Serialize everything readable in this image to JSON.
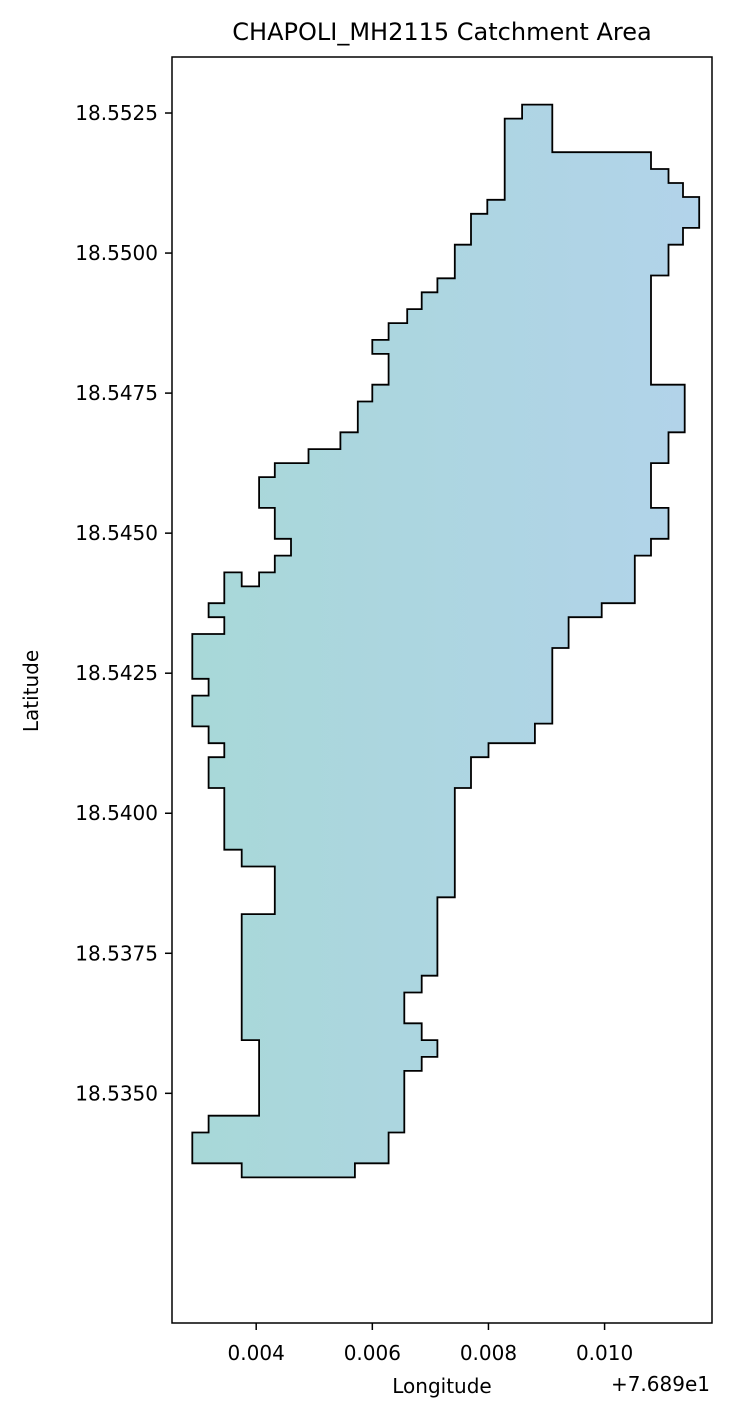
{
  "chart_data": {
    "type": "map",
    "title": "CHAPOLI_MH2115 Catchment Area",
    "xlabel": "Longitude",
    "ylabel": "Latitude",
    "x_offset_label": "+7.689e1",
    "xlim": [
      0.00255,
      0.01185
    ],
    "ylim": [
      18.5309,
      18.5535
    ],
    "xticks": [
      {
        "value": 0.004,
        "label": "0.004"
      },
      {
        "value": 0.006,
        "label": "0.006"
      },
      {
        "value": 0.008,
        "label": "0.008"
      },
      {
        "value": 0.01,
        "label": "0.010"
      }
    ],
    "yticks": [
      {
        "value": 18.535,
        "label": "18.5350"
      },
      {
        "value": 18.5375,
        "label": "18.5375"
      },
      {
        "value": 18.54,
        "label": "18.5400"
      },
      {
        "value": 18.5425,
        "label": "18.5425"
      },
      {
        "value": 18.545,
        "label": "18.5450"
      },
      {
        "value": 18.5475,
        "label": "18.5475"
      },
      {
        "value": 18.55,
        "label": "18.5500"
      },
      {
        "value": 18.5525,
        "label": "18.5525"
      }
    ],
    "grid": false,
    "fill_color_start": "#a8d8d8",
    "fill_color_end": "#b2d3ea",
    "edge_color": "#000000",
    "polygon": [
      [
        0.00858,
        18.55265
      ],
      [
        0.0091,
        18.55265
      ],
      [
        0.0091,
        18.5518
      ],
      [
        0.0108,
        18.5518
      ],
      [
        0.0108,
        18.5515
      ],
      [
        0.0111,
        18.5515
      ],
      [
        0.0111,
        18.55125
      ],
      [
        0.01135,
        18.55125
      ],
      [
        0.01135,
        18.551
      ],
      [
        0.01163,
        18.551
      ],
      [
        0.01163,
        18.55045
      ],
      [
        0.01135,
        18.55045
      ],
      [
        0.01135,
        18.55015
      ],
      [
        0.0111,
        18.55015
      ],
      [
        0.0111,
        18.5496
      ],
      [
        0.0108,
        18.5496
      ],
      [
        0.0108,
        18.54765
      ],
      [
        0.01138,
        18.54765
      ],
      [
        0.01138,
        18.5468
      ],
      [
        0.0111,
        18.5468
      ],
      [
        0.0111,
        18.54625
      ],
      [
        0.0108,
        18.54625
      ],
      [
        0.0108,
        18.54545
      ],
      [
        0.0111,
        18.54545
      ],
      [
        0.0111,
        18.5449
      ],
      [
        0.0108,
        18.5449
      ],
      [
        0.0108,
        18.5446
      ],
      [
        0.01052,
        18.5446
      ],
      [
        0.01052,
        18.54375
      ],
      [
        0.00995,
        18.54375
      ],
      [
        0.00995,
        18.5435
      ],
      [
        0.00938,
        18.5435
      ],
      [
        0.00938,
        18.54295
      ],
      [
        0.0091,
        18.54295
      ],
      [
        0.0091,
        18.5416
      ],
      [
        0.0088,
        18.5416
      ],
      [
        0.0088,
        18.54125
      ],
      [
        0.008,
        18.54125
      ],
      [
        0.008,
        18.541
      ],
      [
        0.0077,
        18.541
      ],
      [
        0.0077,
        18.54045
      ],
      [
        0.00742,
        18.54045
      ],
      [
        0.00742,
        18.5385
      ],
      [
        0.00712,
        18.5385
      ],
      [
        0.00712,
        18.5371
      ],
      [
        0.00685,
        18.5371
      ],
      [
        0.00685,
        18.5368
      ],
      [
        0.00655,
        18.5368
      ],
      [
        0.00655,
        18.53625
      ],
      [
        0.00685,
        18.53625
      ],
      [
        0.00685,
        18.53595
      ],
      [
        0.00712,
        18.53595
      ],
      [
        0.00712,
        18.53565
      ],
      [
        0.00685,
        18.53565
      ],
      [
        0.00685,
        18.5354
      ],
      [
        0.00655,
        18.5354
      ],
      [
        0.00655,
        18.5343
      ],
      [
        0.00628,
        18.5343
      ],
      [
        0.00628,
        18.53375
      ],
      [
        0.0057,
        18.53375
      ],
      [
        0.0057,
        18.5335
      ],
      [
        0.00375,
        18.5335
      ],
      [
        0.00375,
        18.53375
      ],
      [
        0.0029,
        18.53375
      ],
      [
        0.0029,
        18.5343
      ],
      [
        0.00318,
        18.5343
      ],
      [
        0.00318,
        18.5346
      ],
      [
        0.00405,
        18.5346
      ],
      [
        0.00405,
        18.53595
      ],
      [
        0.00375,
        18.53595
      ],
      [
        0.00375,
        18.5382
      ],
      [
        0.00432,
        18.5382
      ],
      [
        0.00432,
        18.53905
      ],
      [
        0.00375,
        18.53905
      ],
      [
        0.00375,
        18.53935
      ],
      [
        0.00345,
        18.53935
      ],
      [
        0.00345,
        18.54045
      ],
      [
        0.00318,
        18.54045
      ],
      [
        0.00318,
        18.541
      ],
      [
        0.00345,
        18.541
      ],
      [
        0.00345,
        18.54125
      ],
      [
        0.00318,
        18.54125
      ],
      [
        0.00318,
        18.54155
      ],
      [
        0.0029,
        18.54155
      ],
      [
        0.0029,
        18.5421
      ],
      [
        0.00318,
        18.5421
      ],
      [
        0.00318,
        18.5424
      ],
      [
        0.0029,
        18.5424
      ],
      [
        0.0029,
        18.5432
      ],
      [
        0.00345,
        18.5432
      ],
      [
        0.00345,
        18.5435
      ],
      [
        0.00318,
        18.5435
      ],
      [
        0.00318,
        18.54375
      ],
      [
        0.00345,
        18.54375
      ],
      [
        0.00345,
        18.5443
      ],
      [
        0.00375,
        18.5443
      ],
      [
        0.00375,
        18.54405
      ],
      [
        0.00405,
        18.54405
      ],
      [
        0.00405,
        18.5443
      ],
      [
        0.00432,
        18.5443
      ],
      [
        0.00432,
        18.5446
      ],
      [
        0.0046,
        18.5446
      ],
      [
        0.0046,
        18.5449
      ],
      [
        0.00432,
        18.5449
      ],
      [
        0.00432,
        18.54545
      ],
      [
        0.00405,
        18.54545
      ],
      [
        0.00405,
        18.546
      ],
      [
        0.00432,
        18.546
      ],
      [
        0.00432,
        18.54625
      ],
      [
        0.0049,
        18.54625
      ],
      [
        0.0049,
        18.5465
      ],
      [
        0.00545,
        18.5465
      ],
      [
        0.00545,
        18.5468
      ],
      [
        0.00575,
        18.5468
      ],
      [
        0.00575,
        18.54735
      ],
      [
        0.006,
        18.54735
      ],
      [
        0.006,
        18.54765
      ],
      [
        0.00628,
        18.54765
      ],
      [
        0.00628,
        18.5482
      ],
      [
        0.006,
        18.5482
      ],
      [
        0.006,
        18.54845
      ],
      [
        0.00628,
        18.54845
      ],
      [
        0.00628,
        18.54875
      ],
      [
        0.0066,
        18.54875
      ],
      [
        0.0066,
        18.549
      ],
      [
        0.00685,
        18.549
      ],
      [
        0.00685,
        18.5493
      ],
      [
        0.00712,
        18.5493
      ],
      [
        0.00712,
        18.54955
      ],
      [
        0.00742,
        18.54955
      ],
      [
        0.00742,
        18.55015
      ],
      [
        0.0077,
        18.55015
      ],
      [
        0.0077,
        18.5507
      ],
      [
        0.00798,
        18.5507
      ],
      [
        0.00798,
        18.55095
      ],
      [
        0.00828,
        18.55095
      ],
      [
        0.00828,
        18.5524
      ],
      [
        0.00858,
        18.5524
      ]
    ]
  }
}
